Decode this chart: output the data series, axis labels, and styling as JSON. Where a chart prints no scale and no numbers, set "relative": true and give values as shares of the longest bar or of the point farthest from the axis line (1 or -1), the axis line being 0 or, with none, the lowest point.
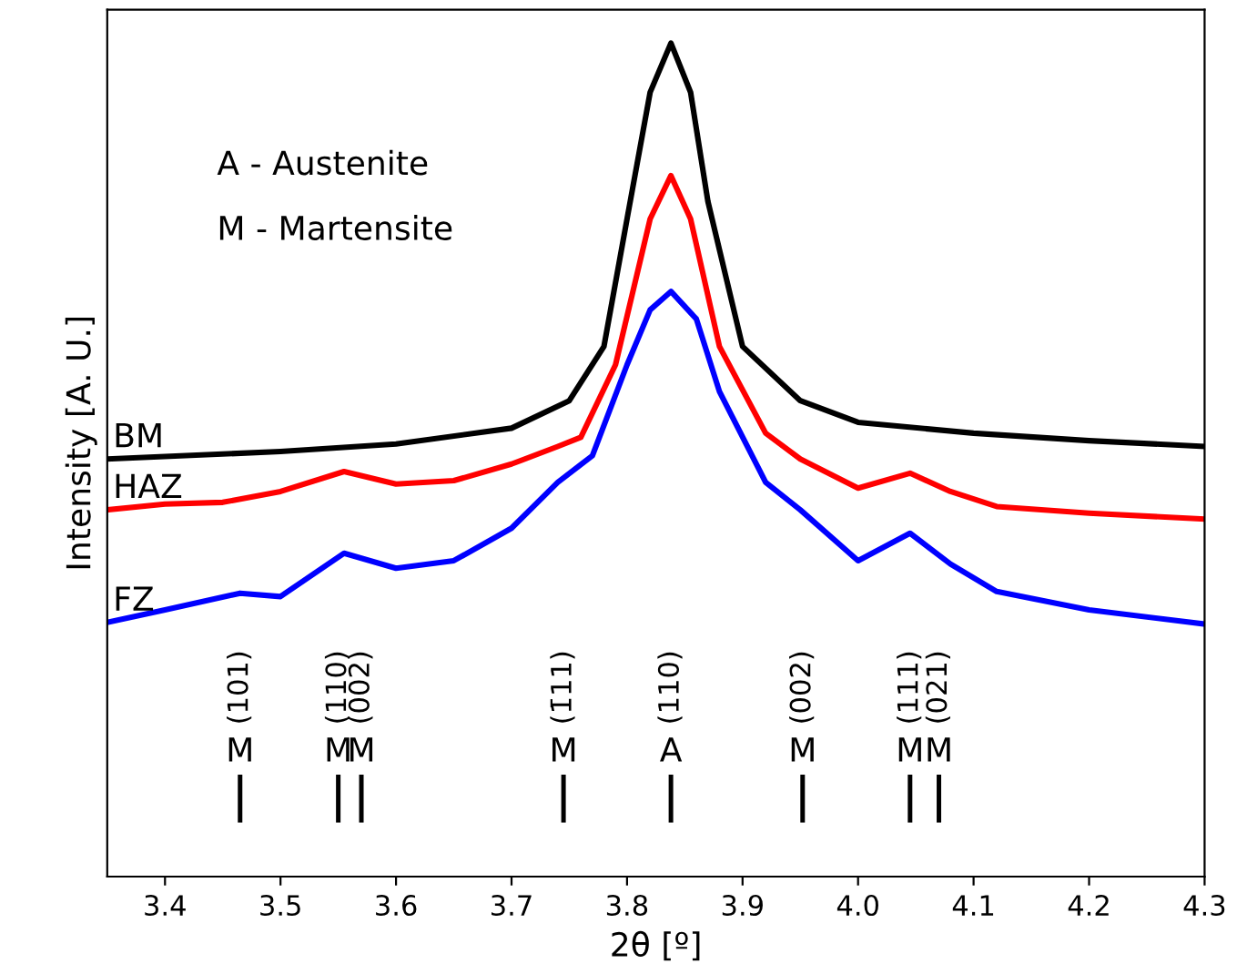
{
  "chart_data": {
    "type": "line",
    "relative": true,
    "xlabel": "2θ [º]",
    "ylabel": "Intensity [A. U.]",
    "xlim": [
      3.35,
      4.3
    ],
    "xticks": [
      3.4,
      3.5,
      3.6,
      3.7,
      3.8,
      3.9,
      {
        "value": 4.0,
        "label": "4.0"
      },
      4.1,
      4.2,
      4.3
    ],
    "tick_labels": "x",
    "grid": false,
    "legend": false,
    "series": [
      {
        "name": "BM",
        "color": "#000000",
        "x": [
          3.35,
          3.5,
          3.6,
          3.7,
          3.75,
          3.78,
          3.8,
          3.82,
          3.838,
          3.855,
          3.87,
          3.9,
          3.95,
          4.0,
          4.1,
          4.2,
          4.3
        ],
        "values": [
          0.501,
          0.51,
          0.519,
          0.538,
          0.571,
          0.636,
          0.789,
          0.941,
          1.0,
          0.941,
          0.81,
          0.636,
          0.571,
          0.545,
          0.532,
          0.523,
          0.516
        ]
      },
      {
        "name": "HAZ",
        "color": "#ff0000",
        "x": [
          3.35,
          3.4,
          3.45,
          3.5,
          3.555,
          3.6,
          3.65,
          3.7,
          3.74,
          3.76,
          3.79,
          3.82,
          3.838,
          3.855,
          3.88,
          3.92,
          3.95,
          4.0,
          4.045,
          4.08,
          4.12,
          4.2,
          4.3
        ],
        "values": [
          0.44,
          0.447,
          0.449,
          0.462,
          0.486,
          0.471,
          0.475,
          0.495,
          0.516,
          0.527,
          0.614,
          0.789,
          0.841,
          0.789,
          0.636,
          0.532,
          0.501,
          0.466,
          0.484,
          0.462,
          0.444,
          0.436,
          0.429
        ]
      },
      {
        "name": "FZ",
        "color": "#0000ff",
        "x": [
          3.35,
          3.4,
          3.465,
          3.5,
          3.555,
          3.6,
          3.65,
          3.7,
          3.74,
          3.77,
          3.8,
          3.82,
          3.838,
          3.86,
          3.88,
          3.92,
          3.95,
          4.0,
          4.045,
          4.08,
          4.12,
          4.2,
          4.3
        ],
        "values": [
          0.305,
          0.32,
          0.34,
          0.336,
          0.388,
          0.37,
          0.379,
          0.418,
          0.473,
          0.505,
          0.614,
          0.68,
          0.702,
          0.669,
          0.582,
          0.473,
          0.44,
          0.379,
          0.412,
          0.375,
          0.342,
          0.32,
          0.303
        ]
      }
    ],
    "ref_lines": [
      {
        "axis": "x",
        "value": 3.465,
        "label": "M (101)",
        "color": "#000000"
      },
      {
        "axis": "x",
        "value": 3.55,
        "label": "M (110)",
        "color": "#000000"
      },
      {
        "axis": "x",
        "value": 3.57,
        "label": "M (002)",
        "color": "#000000"
      },
      {
        "axis": "x",
        "value": 3.745,
        "label": "M (1̄11)",
        "color": "#000000"
      },
      {
        "axis": "x",
        "value": 3.838,
        "label": "A (110)",
        "color": "#000000"
      },
      {
        "axis": "x",
        "value": 3.952,
        "label": "M (002)",
        "color": "#000000"
      },
      {
        "axis": "x",
        "value": 4.045,
        "label": "M (111)",
        "color": "#000000"
      },
      {
        "axis": "x",
        "value": 4.07,
        "label": "M (021)",
        "color": "#000000"
      }
    ],
    "annotations": [
      "A - Austenite",
      "M - Martensite"
    ]
  }
}
